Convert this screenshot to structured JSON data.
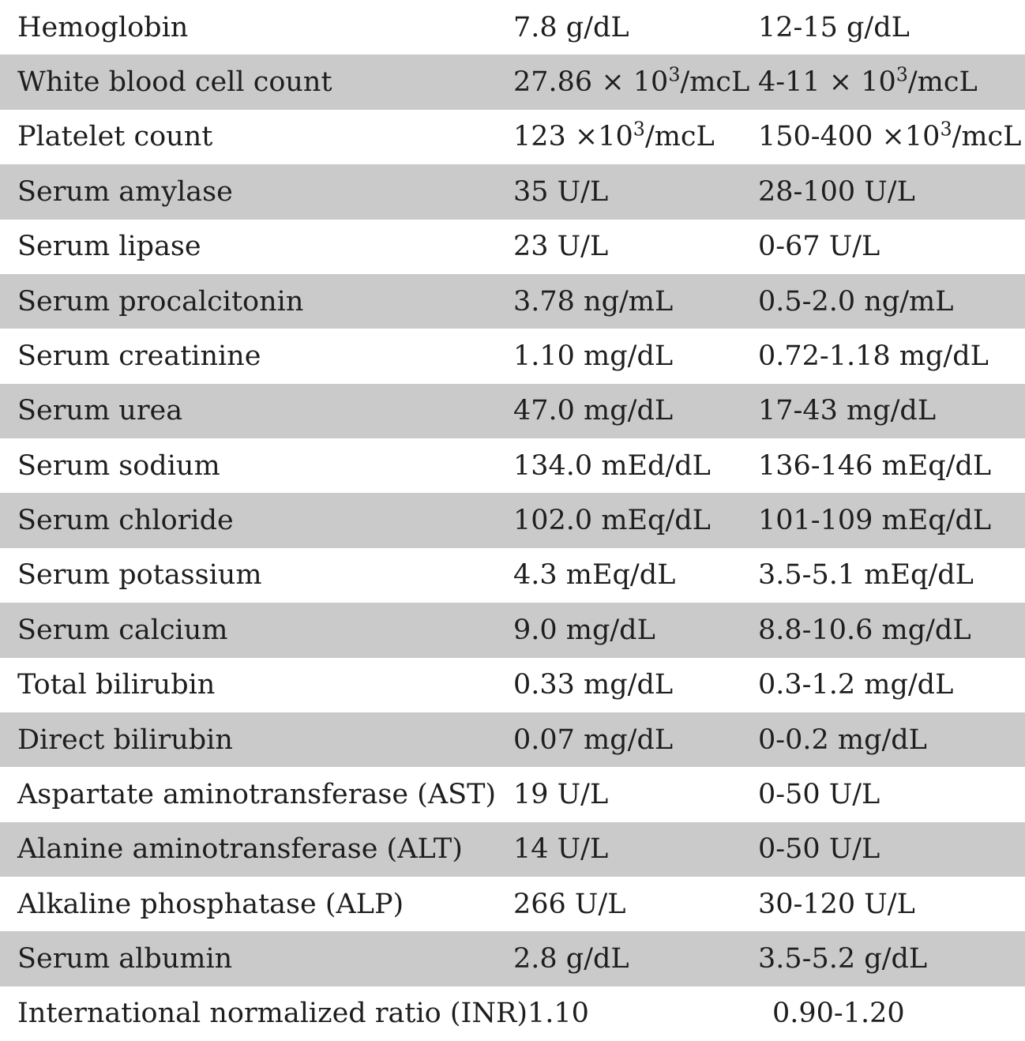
{
  "colors": {
    "row_alt_bg": "#cacaca",
    "text": "#1e1e1e",
    "background": "#ffffff"
  },
  "table": {
    "rows": [
      {
        "test": "Hemoglobin",
        "value": "7.8 g/dL",
        "range": "12-15 g/dL"
      },
      {
        "test": "White blood cell count",
        "value": "27.86 × 10³/mcL",
        "range": "4-11 × 10³/mcL"
      },
      {
        "test": "Platelet count",
        "value": "123 ×10³/mcL",
        "range": "150-400 ×10³/mcL"
      },
      {
        "test": "Serum amylase",
        "value": "35 U/L",
        "range": "28-100 U/L"
      },
      {
        "test": "Serum lipase",
        "value": "23 U/L",
        "range": "0-67 U/L"
      },
      {
        "test": "Serum procalcitonin",
        "value": "3.78 ng/mL",
        "range": "0.5-2.0 ng/mL"
      },
      {
        "test": "Serum creatinine",
        "value": "1.10 mg/dL",
        "range": "0.72-1.18 mg/dL"
      },
      {
        "test": "Serum urea",
        "value": "47.0 mg/dL",
        "range": "17-43 mg/dL"
      },
      {
        "test": "Serum sodium",
        "value": "134.0 mEd/dL",
        "range": "136-146 mEq/dL"
      },
      {
        "test": "Serum chloride",
        "value": "102.0 mEq/dL",
        "range": "101-109 mEq/dL"
      },
      {
        "test": "Serum potassium",
        "value": "4.3 mEq/dL",
        "range": "3.5-5.1 mEq/dL"
      },
      {
        "test": "Serum calcium",
        "value": "9.0 mg/dL",
        "range": "8.8-10.6 mg/dL"
      },
      {
        "test": "Total bilirubin",
        "value": "0.33 mg/dL",
        "range": "0.3-1.2 mg/dL"
      },
      {
        "test": "Direct bilirubin",
        "value": "0.07 mg/dL",
        "range": "0-0.2 mg/dL"
      },
      {
        "test": "Aspartate aminotransferase (AST)",
        "value": "19 U/L",
        "range": "0-50 U/L"
      },
      {
        "test": "Alanine aminotransferase (ALT)",
        "value": "14 U/L",
        "range": "0-50 U/L"
      },
      {
        "test": "Alkaline phosphatase (ALP)",
        "value": "266 U/L",
        "range": "30-120 U/L"
      },
      {
        "test": "Serum albumin",
        "value": "2.8 g/dL",
        "range": "3.5-5.2 g/dL"
      },
      {
        "test": "International normalized ratio (INR)",
        "value": "1.10",
        "range": "0.90-1.20"
      }
    ]
  }
}
